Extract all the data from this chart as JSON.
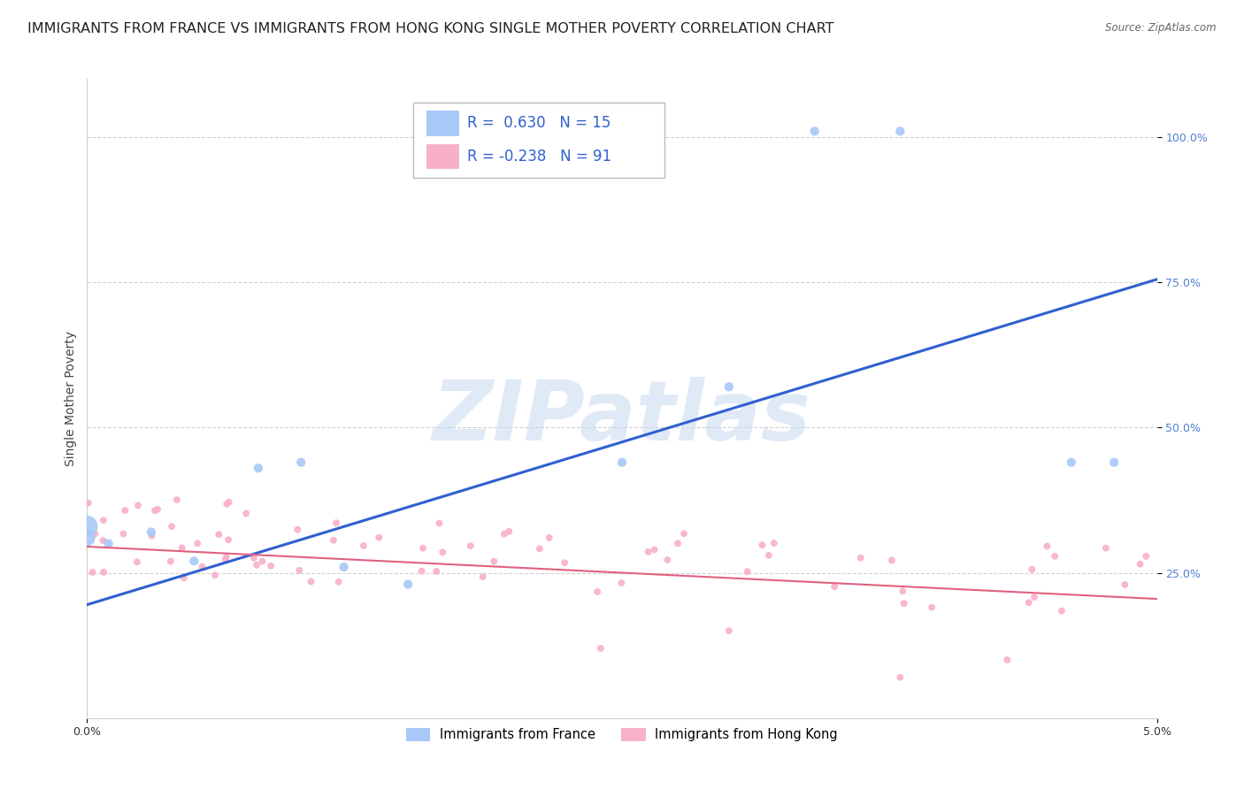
{
  "title": "IMMIGRANTS FROM FRANCE VS IMMIGRANTS FROM HONG KONG SINGLE MOTHER POVERTY CORRELATION CHART",
  "source": "Source: ZipAtlas.com",
  "ylabel": "Single Mother Poverty",
  "x_range": [
    0.0,
    0.05
  ],
  "y_range": [
    0.0,
    1.1
  ],
  "legend_blue_r": "0.630",
  "legend_blue_n": "15",
  "legend_pink_r": "-0.238",
  "legend_pink_n": "91",
  "blue_color": "#a8c8f8",
  "pink_color": "#f8b0c8",
  "blue_line_color": "#3060d0",
  "pink_line_color": "#e06080",
  "watermark_text": "ZIPatlas",
  "watermark_color": "#c8d8f0",
  "background_color": "#ffffff",
  "grid_color": "#d0d0d0",
  "title_fontsize": 11.5,
  "axis_label_fontsize": 10,
  "tick_fontsize": 9,
  "tick_color": "#5080d0",
  "legend_label_blue": "Immigrants from France",
  "legend_label_pink": "Immigrants from Hong Kong",
  "blue_line_x": [
    0.0,
    0.05
  ],
  "blue_line_y": [
    0.195,
    0.755
  ],
  "pink_line_x": [
    0.0,
    0.05
  ],
  "pink_line_y": [
    0.295,
    0.205
  ],
  "blue_points": {
    "x": [
      0.0,
      0.0,
      0.001,
      0.003,
      0.005,
      0.008,
      0.01,
      0.012,
      0.015,
      0.025,
      0.03,
      0.034,
      0.038,
      0.046,
      0.048
    ],
    "y": [
      0.33,
      0.31,
      0.3,
      0.32,
      0.27,
      0.43,
      0.44,
      0.26,
      0.23,
      0.44,
      0.57,
      1.01,
      1.01,
      0.44,
      0.44
    ],
    "s": [
      300,
      180,
      55,
      55,
      55,
      55,
      55,
      55,
      55,
      55,
      55,
      55,
      55,
      55,
      55
    ]
  },
  "pink_points": {
    "x": [
      0.0,
      0.0,
      0.0,
      0.001,
      0.001,
      0.001,
      0.001,
      0.001,
      0.002,
      0.002,
      0.002,
      0.002,
      0.003,
      0.003,
      0.003,
      0.004,
      0.004,
      0.004,
      0.005,
      0.005,
      0.005,
      0.005,
      0.006,
      0.006,
      0.006,
      0.007,
      0.007,
      0.007,
      0.008,
      0.008,
      0.009,
      0.009,
      0.01,
      0.01,
      0.011,
      0.011,
      0.012,
      0.012,
      0.013,
      0.013,
      0.014,
      0.015,
      0.015,
      0.016,
      0.017,
      0.018,
      0.018,
      0.019,
      0.02,
      0.02,
      0.021,
      0.022,
      0.023,
      0.024,
      0.024,
      0.025,
      0.025,
      0.026,
      0.027,
      0.028,
      0.029,
      0.03,
      0.031,
      0.032,
      0.033,
      0.034,
      0.035,
      0.036,
      0.037,
      0.038,
      0.039,
      0.04,
      0.041,
      0.042,
      0.043,
      0.044,
      0.044,
      0.045,
      0.046,
      0.047,
      0.048,
      0.048,
      0.049,
      0.049,
      0.05,
      0.05,
      0.05,
      0.05,
      0.05,
      0.05,
      0.05
    ],
    "y": [
      0.3,
      0.295,
      0.285,
      0.31,
      0.295,
      0.28,
      0.265,
      0.38,
      0.3,
      0.285,
      0.36,
      0.25,
      0.295,
      0.28,
      0.32,
      0.34,
      0.295,
      0.27,
      0.31,
      0.295,
      0.345,
      0.27,
      0.315,
      0.295,
      0.265,
      0.31,
      0.28,
      0.345,
      0.295,
      0.265,
      0.295,
      0.27,
      0.315,
      0.28,
      0.295,
      0.265,
      0.295,
      0.27,
      0.295,
      0.265,
      0.28,
      0.295,
      0.265,
      0.27,
      0.28,
      0.295,
      0.265,
      0.27,
      0.295,
      0.265,
      0.27,
      0.28,
      0.265,
      0.295,
      0.265,
      0.28,
      0.265,
      0.27,
      0.265,
      0.28,
      0.265,
      0.27,
      0.265,
      0.27,
      0.265,
      0.27,
      0.265,
      0.27,
      0.265,
      0.27,
      0.265,
      0.27,
      0.265,
      0.265,
      0.265,
      0.265,
      0.27,
      0.265,
      0.265,
      0.265,
      0.265,
      0.265,
      0.27,
      0.265,
      0.265,
      0.265,
      0.265,
      0.265,
      0.265,
      0.265,
      0.265
    ],
    "s": 30
  }
}
